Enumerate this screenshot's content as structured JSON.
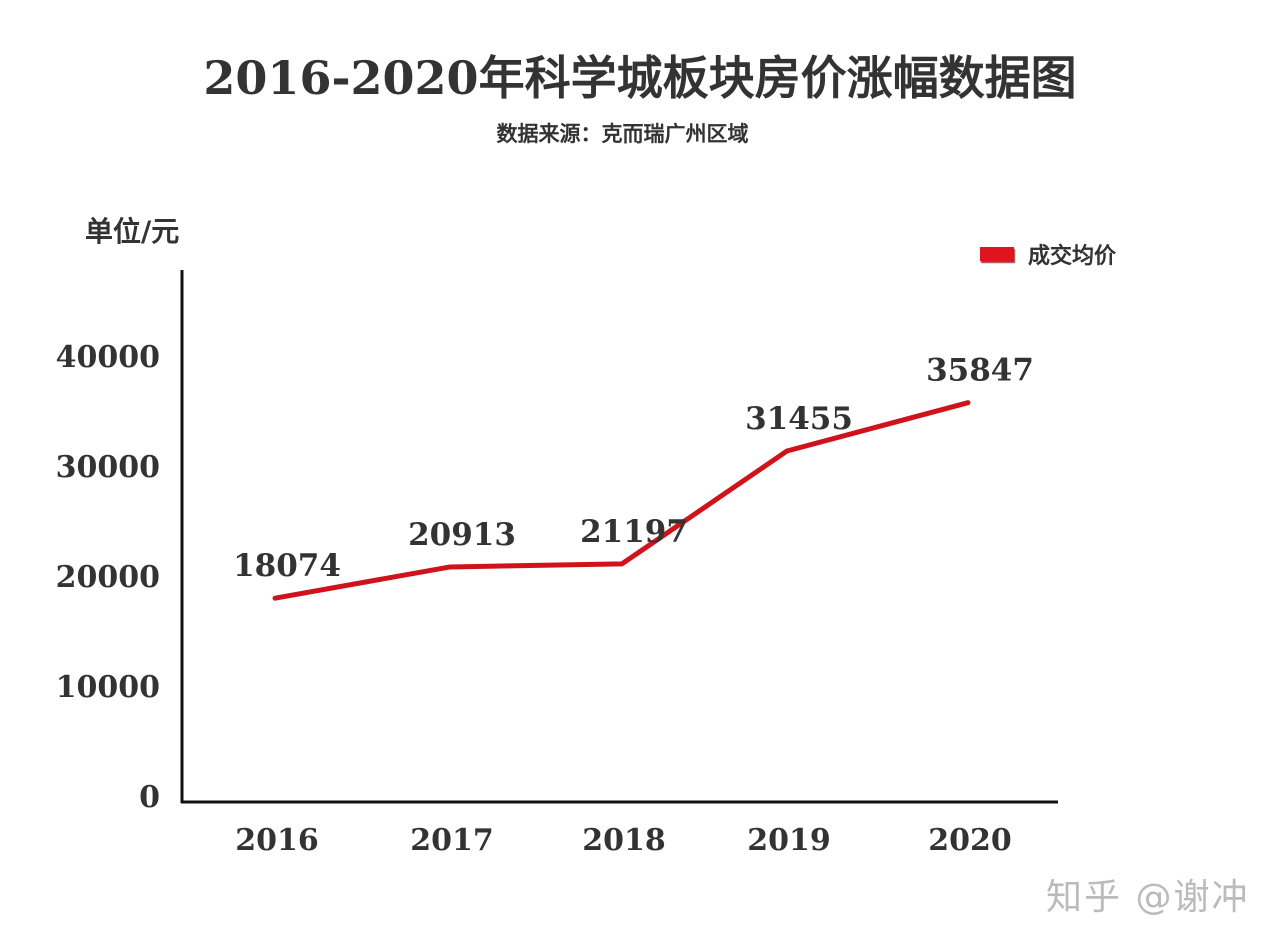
{
  "chart_data": {
    "type": "line",
    "title": "2016-2020年科学城板块房价涨幅数据图",
    "subtitle": "数据来源：克而瑞广州区域",
    "ylabel": "单位/元",
    "xlabel": "",
    "categories": [
      "2016",
      "2017",
      "2018",
      "2019",
      "2020"
    ],
    "series": [
      {
        "name": "成交均价",
        "values": [
          18074,
          20913,
          21197,
          31455,
          35847
        ],
        "color": "#d0121b"
      }
    ],
    "yticks": [
      0,
      10000,
      20000,
      30000,
      40000
    ],
    "ylim": [
      0,
      48000
    ],
    "grid": false,
    "legend_position": "top-right",
    "data_labels": [
      "18074",
      "20913",
      "21197",
      "31455",
      "35847"
    ]
  },
  "watermark": "知乎 @谢冲"
}
